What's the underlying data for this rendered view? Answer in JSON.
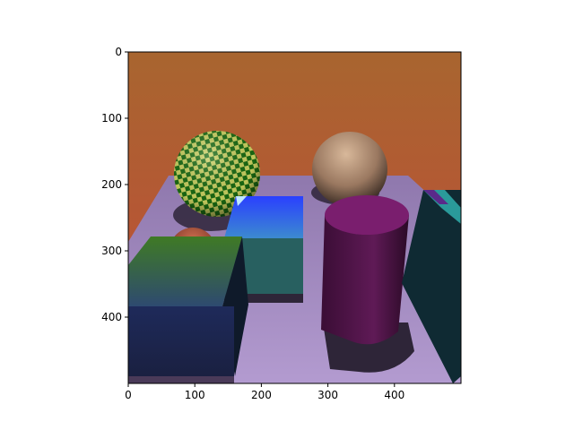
{
  "figure": {
    "image_extent": {
      "x": [
        0,
        500
      ],
      "y": [
        0,
        500
      ]
    },
    "x_ticks": [
      {
        "value": 0,
        "label": "0"
      },
      {
        "value": 100,
        "label": "100"
      },
      {
        "value": 200,
        "label": "200"
      },
      {
        "value": 300,
        "label": "300"
      },
      {
        "value": 400,
        "label": "400"
      }
    ],
    "y_ticks": [
      {
        "value": 0,
        "label": "0"
      },
      {
        "value": 100,
        "label": "100"
      },
      {
        "value": 200,
        "label": "200"
      },
      {
        "value": 300,
        "label": "300"
      },
      {
        "value": 400,
        "label": "400"
      }
    ],
    "colors": {
      "sky_top": "#a8652f",
      "sky_bottom": "#c24a3a",
      "floor": "#a58bc2",
      "checker_light": "#c8d060",
      "checker_dark": "#1a6a12",
      "bronze_sphere": "#b8957a",
      "red_sphere": "#c0583e",
      "blue_box_top": "#3060ff",
      "teal_box": "#286060",
      "green_box_top": "#3d7a2a",
      "navy_box": "#1c2550",
      "cylinder": "#5a1550",
      "cylinder_top": "#7a1e6e",
      "dark_slab": "#0f2a33",
      "shadow": "#2e2538"
    }
  }
}
